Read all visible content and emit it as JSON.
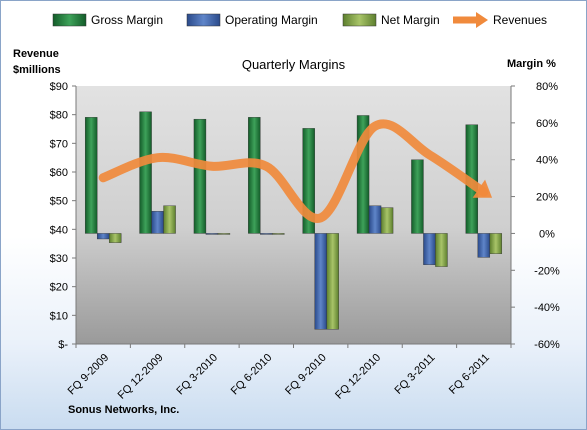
{
  "chart_data": {
    "type": "bar",
    "title": "Quarterly Margins",
    "company": "Sonus Networks, Inc.",
    "categories": [
      "FQ 9-2009",
      "FQ 12-2009",
      "FQ 3-2010",
      "FQ 6-2010",
      "FQ 9-2010",
      "FQ 12-2010",
      "FQ 3-2011",
      "FQ 6-2011"
    ],
    "y_left": {
      "label_line1": "Revenue",
      "label_line2": "$millions",
      "min": 0,
      "max": 90,
      "step": 10,
      "ticks": [
        "$-",
        "$10",
        "$20",
        "$30",
        "$40",
        "$50",
        "$60",
        "$70",
        "$80",
        "$90"
      ]
    },
    "y_right": {
      "label": "Margin %",
      "min": -60,
      "max": 80,
      "step": 20,
      "ticks": [
        "-60%",
        "-40%",
        "-20%",
        "0%",
        "20%",
        "40%",
        "60%",
        "80%"
      ]
    },
    "series": [
      {
        "name": "Gross Margin",
        "axis": "right",
        "kind": "bar",
        "color": "#1f7a3a",
        "values": [
          63,
          66,
          62,
          63,
          57,
          64,
          40,
          59
        ]
      },
      {
        "name": "Operating Margin",
        "axis": "right",
        "kind": "bar",
        "color": "#3a5fa8",
        "values": [
          -3,
          12,
          0,
          0,
          -52,
          15,
          -17,
          -13
        ]
      },
      {
        "name": "Net Margin",
        "axis": "right",
        "kind": "bar",
        "color": "#7da046",
        "values": [
          -5,
          15,
          0,
          0,
          -52,
          14,
          -18,
          -11
        ]
      },
      {
        "name": "Revenues",
        "axis": "left",
        "kind": "line",
        "color": "#f08a3c",
        "values": [
          58,
          65,
          62,
          62,
          44,
          76,
          66,
          53
        ]
      }
    ],
    "grid": false,
    "legend_position": "top"
  }
}
